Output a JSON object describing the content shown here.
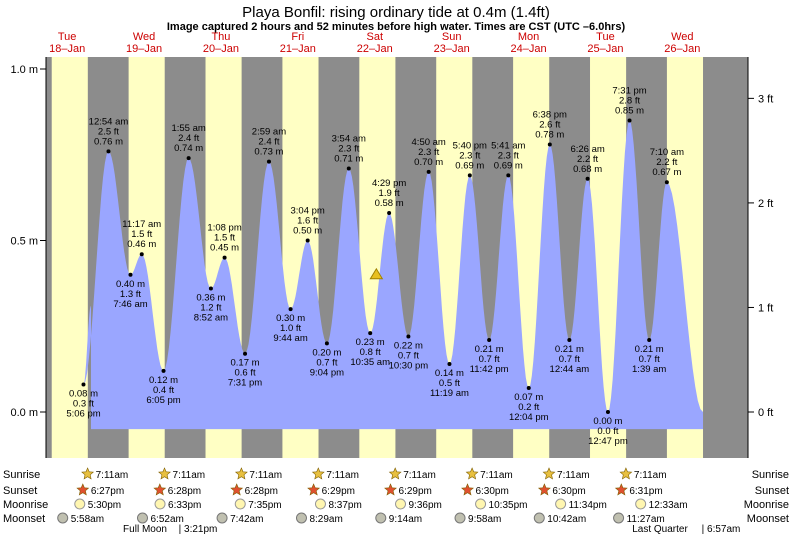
{
  "chart_data": {
    "type": "area",
    "title": "Playa Bonfil: rising  ordinary tide at 0.4m (1.4ft)",
    "subtitle": "Image captured 2 hours and 52 minutes before high water. Times are CST (UTC –6.0hrs)",
    "ylim_m": [
      -0.12,
      1.04
    ],
    "y_left_ticks": [
      {
        "v": 0.0,
        "label": "0.0 m"
      },
      {
        "v": 0.5,
        "label": "0.5 m"
      },
      {
        "v": 1.0,
        "label": "1.0 m"
      }
    ],
    "y_right_ticks": [
      {
        "v": 0.0,
        "label": "0 ft"
      },
      {
        "v": 0.3048,
        "label": "1 ft"
      },
      {
        "v": 0.6096,
        "label": "2 ft"
      },
      {
        "v": 0.9144,
        "label": "3 ft"
      }
    ],
    "days": [
      {
        "dow": "Tue",
        "date": "18–Jan"
      },
      {
        "dow": "Wed",
        "date": "19–Jan"
      },
      {
        "dow": "Thu",
        "date": "20–Jan"
      },
      {
        "dow": "Fri",
        "date": "21–Jan"
      },
      {
        "dow": "Sat",
        "date": "22–Jan"
      },
      {
        "dow": "Sun",
        "date": "23–Jan"
      },
      {
        "dow": "Mon",
        "date": "24–Jan"
      },
      {
        "dow": "Tue",
        "date": "25–Jan"
      },
      {
        "dow": "Wed",
        "date": "26–Jan"
      }
    ],
    "tides": [
      {
        "day": 0,
        "time": "5:06 pm",
        "ft": "0.3 ft",
        "m": 0.08,
        "m_label": "0.08 m",
        "type": "low"
      },
      {
        "day": 1,
        "time": "12:54 am",
        "ft": "2.5 ft",
        "m": 0.76,
        "m_label": "0.76 m",
        "type": "high"
      },
      {
        "day": 1,
        "time": "7:46 am",
        "ft": "1.3 ft",
        "m": 0.4,
        "m_label": "0.40 m",
        "type": "low"
      },
      {
        "day": 1,
        "time": "11:17 am",
        "ft": "1.5 ft",
        "m": 0.46,
        "m_label": "0.46 m",
        "type": "high"
      },
      {
        "day": 1,
        "time": "6:05 pm",
        "ft": "0.4 ft",
        "m": 0.12,
        "m_label": "0.12 m",
        "type": "low"
      },
      {
        "day": 2,
        "time": "1:55 am",
        "ft": "2.4 ft",
        "m": 0.74,
        "m_label": "0.74 m",
        "type": "high"
      },
      {
        "day": 2,
        "time": "8:52 am",
        "ft": "1.2 ft",
        "m": 0.36,
        "m_label": "0.36 m",
        "type": "low"
      },
      {
        "day": 2,
        "time": "1:08 pm",
        "ft": "1.5 ft",
        "m": 0.45,
        "m_label": "0.45 m",
        "type": "high"
      },
      {
        "day": 2,
        "time": "7:31 pm",
        "ft": "0.6 ft",
        "m": 0.17,
        "m_label": "0.17 m",
        "type": "low"
      },
      {
        "day": 3,
        "time": "2:59 am",
        "ft": "2.4 ft",
        "m": 0.73,
        "m_label": "0.73 m",
        "type": "high"
      },
      {
        "day": 3,
        "time": "9:44 am",
        "ft": "1.0 ft",
        "m": 0.3,
        "m_label": "0.30 m",
        "type": "low"
      },
      {
        "day": 3,
        "time": "3:04 pm",
        "ft": "1.6 ft",
        "m": 0.5,
        "m_label": "0.50 m",
        "type": "high"
      },
      {
        "day": 3,
        "time": "9:04 pm",
        "ft": "0.7 ft",
        "m": 0.2,
        "m_label": "0.20 m",
        "type": "low"
      },
      {
        "day": 4,
        "time": "3:54 am",
        "ft": "2.3 ft",
        "m": 0.71,
        "m_label": "0.71 m",
        "type": "high"
      },
      {
        "day": 4,
        "time": "10:35 am",
        "ft": "0.8 ft",
        "m": 0.23,
        "m_label": "0.23 m",
        "type": "low"
      },
      {
        "day": 4,
        "time": "4:29 pm",
        "ft": "1.9 ft",
        "m": 0.58,
        "m_label": "0.58 m",
        "type": "high"
      },
      {
        "day": 4,
        "time": "10:30 pm",
        "ft": "0.7 ft",
        "m": 0.22,
        "m_label": "0.22 m",
        "type": "low"
      },
      {
        "day": 5,
        "time": "4:50 am",
        "ft": "2.3 ft",
        "m": 0.7,
        "m_label": "0.70 m",
        "type": "high"
      },
      {
        "day": 5,
        "time": "11:19 am",
        "ft": "0.5 ft",
        "m": 0.14,
        "m_label": "0.14 m",
        "type": "low"
      },
      {
        "day": 5,
        "time": "5:40 pm",
        "ft": "2.3 ft",
        "m": 0.69,
        "m_label": "0.69 m",
        "type": "high"
      },
      {
        "day": 5,
        "time": "11:42 pm",
        "ft": "0.7 ft",
        "m": 0.21,
        "m_label": "0.21 m",
        "type": "low"
      },
      {
        "day": 6,
        "time": "5:41 am",
        "ft": "2.3 ft",
        "m": 0.69,
        "m_label": "0.69 m",
        "type": "high"
      },
      {
        "day": 6,
        "time": "12:04 pm",
        "ft": "0.2 ft",
        "m": 0.07,
        "m_label": "0.07 m",
        "type": "low"
      },
      {
        "day": 6,
        "time": "6:38 pm",
        "ft": "2.6 ft",
        "m": 0.78,
        "m_label": "0.78 m",
        "type": "high"
      },
      {
        "day": 7,
        "time": "12:44 am",
        "ft": "0.7 ft",
        "m": 0.21,
        "m_label": "0.21 m",
        "type": "low"
      },
      {
        "day": 7,
        "time": "6:26 am",
        "ft": "2.2 ft",
        "m": 0.68,
        "m_label": "0.68 m",
        "type": "high"
      },
      {
        "day": 7,
        "time": "12:47 pm",
        "ft": "0.0 ft",
        "m": 0.0,
        "m_label": "0.00 m",
        "type": "low"
      },
      {
        "day": 7,
        "time": "7:31 pm",
        "ft": "2.8 ft",
        "m": 0.85,
        "m_label": "0.85 m",
        "type": "high"
      },
      {
        "day": 8,
        "time": "1:39 am",
        "ft": "0.7 ft",
        "m": 0.21,
        "m_label": "0.21 m",
        "type": "low"
      },
      {
        "day": 8,
        "time": "7:10 am",
        "ft": "2.2 ft",
        "m": 0.67,
        "m_label": "0.67 m",
        "type": "high"
      }
    ],
    "current": {
      "m": 0.4
    },
    "bottom_labels": [
      "Sunrise",
      "Sunset",
      "Moonrise",
      "Moonset"
    ],
    "sunrise": [
      "7:11am",
      "7:11am",
      "7:11am",
      "7:11am",
      "7:11am",
      "7:11am",
      "7:11am",
      "7:11am"
    ],
    "sunset": [
      "6:27pm",
      "6:28pm",
      "6:28pm",
      "6:29pm",
      "6:29pm",
      "6:30pm",
      "6:30pm",
      "6:31pm"
    ],
    "moonrise": [
      "5:30pm",
      "6:33pm",
      "7:35pm",
      "8:37pm",
      "9:36pm",
      "10:35pm",
      "11:34pm",
      "12:33am"
    ],
    "moonset": [
      "5:58am",
      "6:52am",
      "7:42am",
      "8:29am",
      "9:14am",
      "9:58am",
      "10:42am",
      "11:27am"
    ],
    "moon_phases": [
      {
        "label": "Full Moon",
        "time": "3:21pm"
      },
      {
        "label": "Last Quarter",
        "time": "6:57am"
      }
    ],
    "colors": {
      "water": "#9aa6ff",
      "day": "#ffffc4",
      "night": "#8c8c8c",
      "sunIcon": "#e8c040",
      "sunsetIcon": "#e05030",
      "moonrise": "#fff6b0",
      "moonset": "#c0c0b0"
    }
  }
}
